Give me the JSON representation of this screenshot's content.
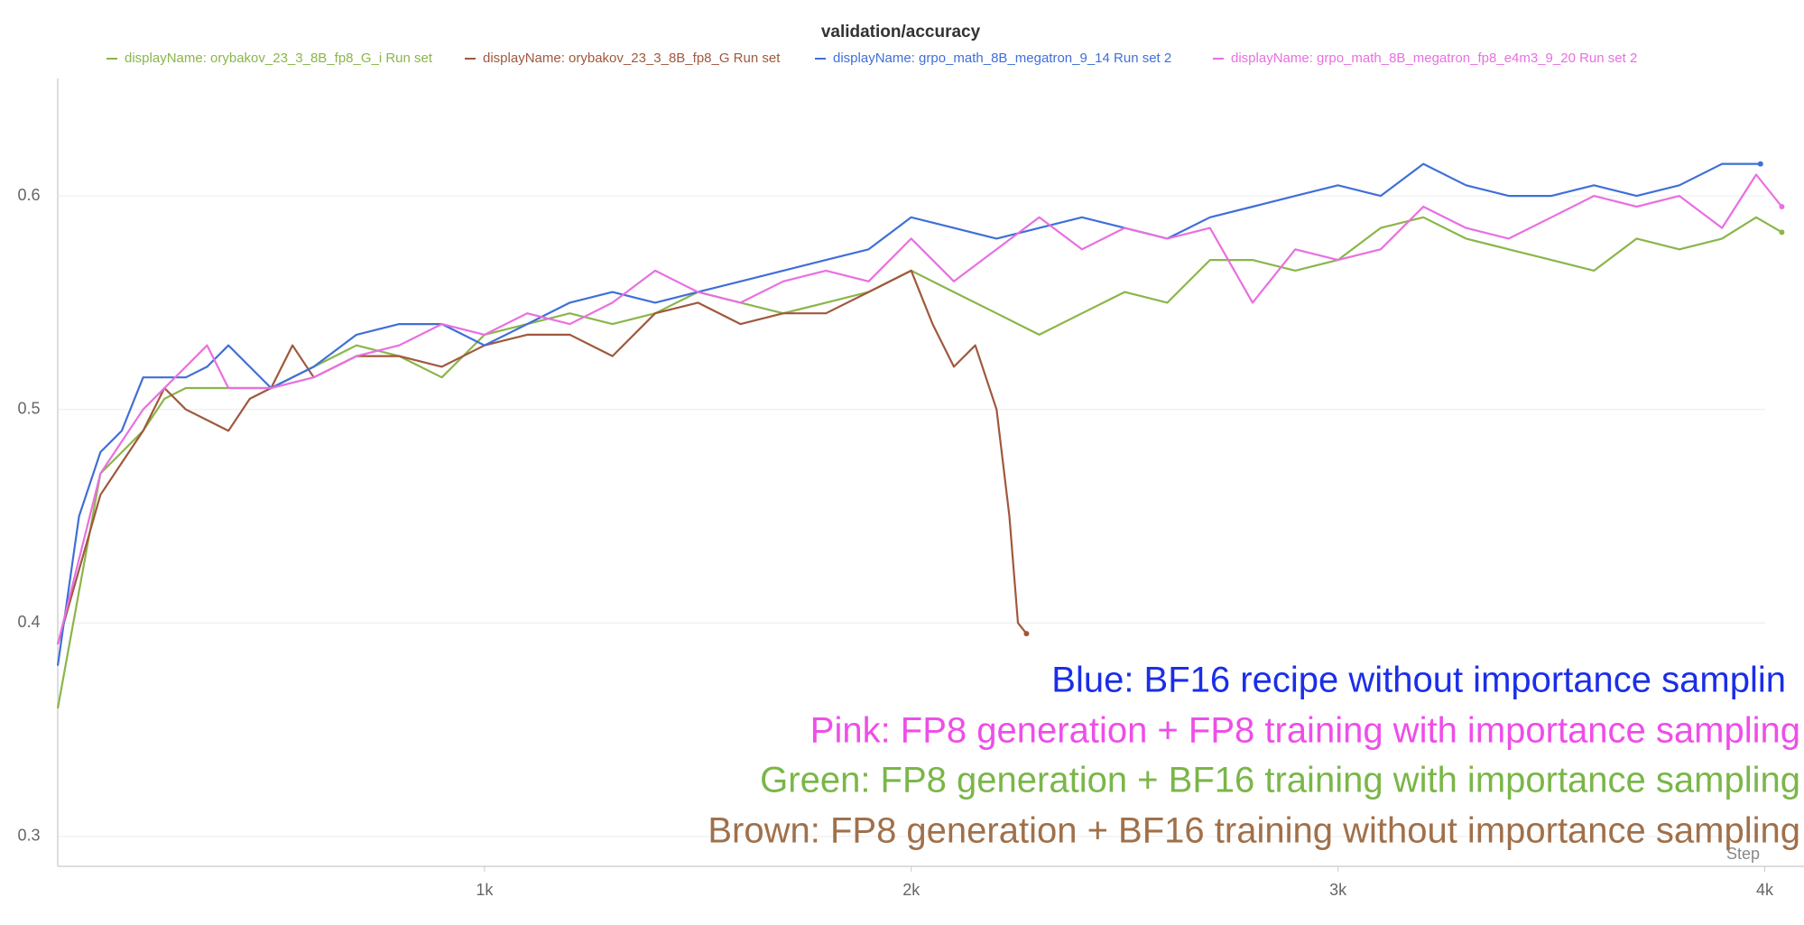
{
  "chart_data": {
    "type": "line",
    "title": "validation/accuracy",
    "xlabel": "Step",
    "xlim": [
      0,
      4092
    ],
    "ylim": [
      0.286,
      0.655
    ],
    "xticks": [
      {
        "value": 1000,
        "label": "1k"
      },
      {
        "value": 2000,
        "label": "2k"
      },
      {
        "value": 3000,
        "label": "3k"
      },
      {
        "value": 4000,
        "label": "4k"
      }
    ],
    "yticks": [
      0.3,
      0.4,
      0.5,
      0.6
    ],
    "grid": true,
    "legend": "top",
    "series": [
      {
        "name": "displayName: orybakov_23_3_8B_fp8_G_i Run set",
        "color": "#8bb54a",
        "x": [
          0,
          100,
          200,
          250,
          300,
          400,
          500,
          600,
          700,
          800,
          900,
          1000,
          1100,
          1200,
          1300,
          1400,
          1500,
          1600,
          1700,
          1800,
          1900,
          2000,
          2100,
          2200,
          2300,
          2400,
          2500,
          2600,
          2700,
          2800,
          2900,
          3000,
          3100,
          3200,
          3300,
          3400,
          3500,
          3600,
          3700,
          3800,
          3900,
          3980,
          4040
        ],
        "values": [
          0.36,
          0.47,
          0.49,
          0.505,
          0.51,
          0.51,
          0.51,
          0.52,
          0.53,
          0.525,
          0.515,
          0.535,
          0.54,
          0.545,
          0.54,
          0.545,
          0.555,
          0.55,
          0.545,
          0.55,
          0.555,
          0.565,
          0.555,
          0.545,
          0.535,
          0.545,
          0.555,
          0.55,
          0.57,
          0.57,
          0.565,
          0.57,
          0.585,
          0.59,
          0.58,
          0.575,
          0.57,
          0.565,
          0.58,
          0.575,
          0.58,
          0.59,
          0.583
        ]
      },
      {
        "name": "displayName: orybakov_23_3_8B_fp8_G Run set",
        "color": "#a0583d",
        "x": [
          0,
          100,
          150,
          200,
          250,
          300,
          350,
          400,
          450,
          500,
          550,
          600,
          700,
          800,
          900,
          1000,
          1100,
          1200,
          1300,
          1400,
          1500,
          1600,
          1700,
          1800,
          1900,
          2000,
          2050,
          2100,
          2150,
          2200,
          2230,
          2250,
          2270
        ],
        "values": [
          0.39,
          0.46,
          0.475,
          0.49,
          0.51,
          0.5,
          0.495,
          0.49,
          0.505,
          0.51,
          0.53,
          0.515,
          0.525,
          0.525,
          0.52,
          0.53,
          0.535,
          0.535,
          0.525,
          0.545,
          0.55,
          0.54,
          0.545,
          0.545,
          0.555,
          0.565,
          0.54,
          0.52,
          0.53,
          0.5,
          0.45,
          0.4,
          0.395
        ]
      },
      {
        "name": "displayName: grpo_math_8B_megatron_9_14 Run set 2",
        "color": "#3f6fd8",
        "x": [
          0,
          50,
          100,
          150,
          200,
          300,
          350,
          400,
          450,
          500,
          600,
          700,
          800,
          900,
          1000,
          1100,
          1200,
          1300,
          1400,
          1500,
          1600,
          1700,
          1800,
          1900,
          2000,
          2100,
          2200,
          2300,
          2400,
          2500,
          2600,
          2700,
          2800,
          2900,
          3000,
          3100,
          3200,
          3300,
          3400,
          3500,
          3600,
          3700,
          3800,
          3900,
          3990
        ],
        "values": [
          0.38,
          0.45,
          0.48,
          0.49,
          0.515,
          0.515,
          0.52,
          0.53,
          0.52,
          0.51,
          0.52,
          0.535,
          0.54,
          0.54,
          0.53,
          0.54,
          0.55,
          0.555,
          0.55,
          0.555,
          0.56,
          0.565,
          0.57,
          0.575,
          0.59,
          0.585,
          0.58,
          0.585,
          0.59,
          0.585,
          0.58,
          0.59,
          0.595,
          0.6,
          0.605,
          0.6,
          0.615,
          0.605,
          0.6,
          0.6,
          0.605,
          0.6,
          0.605,
          0.615,
          0.615
        ]
      },
      {
        "name": "displayName: grpo_math_8B_megatron_fp8_e4m3_9_20 Run set 2",
        "color": "#e96fe0",
        "x": [
          0,
          100,
          200,
          300,
          350,
          400,
          500,
          600,
          700,
          800,
          900,
          1000,
          1100,
          1200,
          1300,
          1400,
          1500,
          1600,
          1700,
          1800,
          1900,
          2000,
          2100,
          2200,
          2300,
          2400,
          2500,
          2600,
          2700,
          2800,
          2900,
          3000,
          3100,
          3200,
          3300,
          3400,
          3500,
          3600,
          3700,
          3800,
          3900,
          3980,
          4040
        ],
        "values": [
          0.39,
          0.47,
          0.5,
          0.52,
          0.53,
          0.51,
          0.51,
          0.515,
          0.525,
          0.53,
          0.54,
          0.535,
          0.545,
          0.54,
          0.55,
          0.565,
          0.555,
          0.55,
          0.56,
          0.565,
          0.56,
          0.58,
          0.56,
          0.575,
          0.59,
          0.575,
          0.585,
          0.58,
          0.585,
          0.55,
          0.575,
          0.57,
          0.575,
          0.595,
          0.585,
          0.58,
          0.59,
          0.6,
          0.595,
          0.6,
          0.585,
          0.61,
          0.595
        ]
      }
    ],
    "annotations": [
      {
        "text": "Blue: BF16 recipe without importance samplin",
        "color": "#1a2ee8"
      },
      {
        "text": "Pink: FP8 generation + FP8 training with importance sampling",
        "color": "#ee4ee8"
      },
      {
        "text": "Green: FP8 generation + BF16 training with importance sampling",
        "color": "#7ab648"
      },
      {
        "text": "Brown: FP8 generation + BF16 training without importance sampling",
        "color": "#a0704a"
      }
    ]
  }
}
